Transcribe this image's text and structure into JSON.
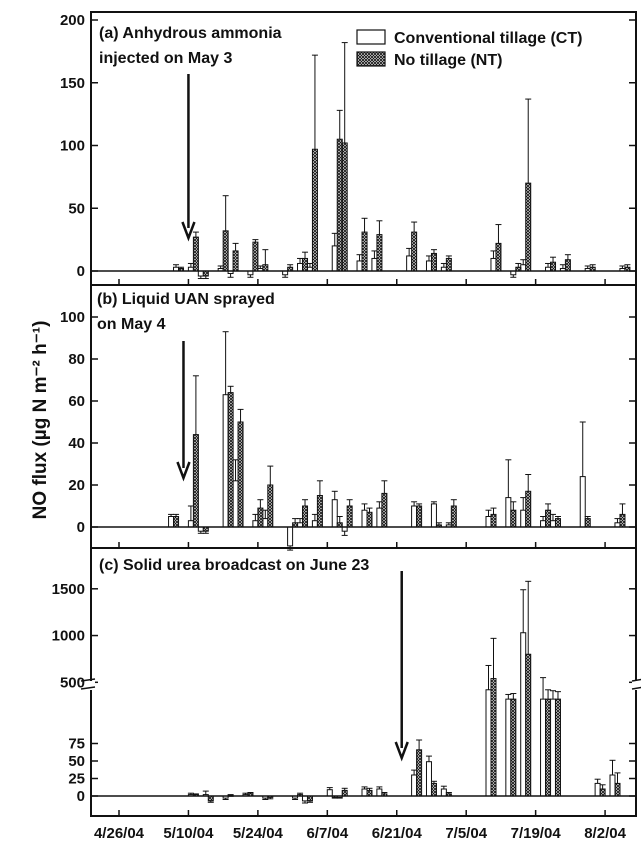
{
  "chart_data": {
    "type": "bar",
    "ylabel": "NO flux (µg N m⁻² h⁻¹)",
    "x_tick_labels": [
      "4/26/04",
      "5/10/04",
      "5/24/04",
      "6/7/04",
      "6/21/04",
      "7/5/04",
      "7/19/04",
      "8/2/04"
    ],
    "x_range_days_from_4_26": [
      0,
      105
    ],
    "legend": {
      "placement": "top-right of panel (a)",
      "entries": [
        "Conventional tillage (CT)",
        "No tillage (NT)"
      ]
    },
    "panels": [
      {
        "id": "a",
        "label_lines": [
          "(a) Anhydrous ammonia",
          "injected on May 3"
        ],
        "ylim": [
          -8,
          200
        ],
        "y_ticks": [
          0,
          50,
          100,
          150,
          200
        ],
        "arrow_date": "5/10/04",
        "series": [
          {
            "name": "Conventional tillage (CT)",
            "points": [
              {
                "x": "5/8/04",
                "y": 3,
                "err": 2
              },
              {
                "x": "5/11/04",
                "y": 3,
                "err": 3
              },
              {
                "x": "5/13/04",
                "y": -4,
                "err": 2
              },
              {
                "x": "5/17/04",
                "y": 2,
                "err": 2
              },
              {
                "x": "5/19/04",
                "y": -2,
                "err": 3
              },
              {
                "x": "5/23/04",
                "y": -3,
                "err": 2
              },
              {
                "x": "5/25/04",
                "y": 2,
                "err": 2
              },
              {
                "x": "5/30/04",
                "y": -3,
                "err": 2
              },
              {
                "x": "6/2/04",
                "y": 6,
                "err": 4
              },
              {
                "x": "6/4/04",
                "y": 3,
                "err": 3
              },
              {
                "x": "6/9/04",
                "y": 20,
                "err": 10
              },
              {
                "x": "6/10/04",
                "y": 10,
                "err": 6
              },
              {
                "x": "6/14/04",
                "y": 8,
                "err": 5
              },
              {
                "x": "6/17/04",
                "y": 10,
                "err": 6
              },
              {
                "x": "6/24/04",
                "y": 12,
                "err": 6
              },
              {
                "x": "6/28/04",
                "y": 8,
                "err": 4
              },
              {
                "x": "7/1/04",
                "y": 3,
                "err": 3
              },
              {
                "x": "7/11/04",
                "y": 10,
                "err": 6
              },
              {
                "x": "7/15/04",
                "y": -3,
                "err": 2
              },
              {
                "x": "7/17/04",
                "y": 5,
                "err": 4
              },
              {
                "x": "7/22/04",
                "y": 3,
                "err": 3
              },
              {
                "x": "7/25/04",
                "y": 2,
                "err": 3
              },
              {
                "x": "7/30/04",
                "y": 2,
                "err": 2
              },
              {
                "x": "8/6/04",
                "y": 2,
                "err": 2
              }
            ]
          },
          {
            "name": "No tillage (NT)",
            "points": [
              {
                "x": "5/8/04",
                "y": 2,
                "err": 1
              },
              {
                "x": "5/11/04",
                "y": 27,
                "err": 4
              },
              {
                "x": "5/13/04",
                "y": -4,
                "err": 2
              },
              {
                "x": "5/17/04",
                "y": 32,
                "err": 28
              },
              {
                "x": "5/19/04",
                "y": 16,
                "err": 6
              },
              {
                "x": "5/23/04",
                "y": 23,
                "err": 2
              },
              {
                "x": "5/25/04",
                "y": 5,
                "err": 12
              },
              {
                "x": "5/30/04",
                "y": 3,
                "err": 2
              },
              {
                "x": "6/2/04",
                "y": 10,
                "err": 5
              },
              {
                "x": "6/4/04",
                "y": 97,
                "err": 75
              },
              {
                "x": "6/9/04",
                "y": 105,
                "err": 23
              },
              {
                "x": "6/10/04",
                "y": 102,
                "err": 80
              },
              {
                "x": "6/14/04",
                "y": 31,
                "err": 11
              },
              {
                "x": "6/17/04",
                "y": 29,
                "err": 11
              },
              {
                "x": "6/24/04",
                "y": 31,
                "err": 8
              },
              {
                "x": "6/28/04",
                "y": 14,
                "err": 3
              },
              {
                "x": "7/1/04",
                "y": 10,
                "err": 2
              },
              {
                "x": "7/11/04",
                "y": 22,
                "err": 15
              },
              {
                "x": "7/15/04",
                "y": 3,
                "err": 3
              },
              {
                "x": "7/17/04",
                "y": 70,
                "err": 67
              },
              {
                "x": "7/22/04",
                "y": 7,
                "err": 4
              },
              {
                "x": "7/25/04",
                "y": 9,
                "err": 4
              },
              {
                "x": "7/30/04",
                "y": 3,
                "err": 2
              },
              {
                "x": "8/6/04",
                "y": 3,
                "err": 2
              }
            ]
          }
        ]
      },
      {
        "id": "b",
        "label_lines": [
          "(b) Liquid UAN sprayed",
          "on May 4"
        ],
        "ylim": [
          -10,
          100
        ],
        "y_ticks": [
          0,
          20,
          40,
          60,
          80,
          100
        ],
        "arrow_date": "5/9/04",
        "series": [
          {
            "name": "Conventional tillage (CT)",
            "points": [
              {
                "x": "5/7/04",
                "y": 5,
                "err": 1
              },
              {
                "x": "5/11/04",
                "y": 3,
                "err": 7
              },
              {
                "x": "5/13/04",
                "y": -2,
                "err": 1
              },
              {
                "x": "5/18/04",
                "y": 63,
                "err": 30
              },
              {
                "x": "5/20/04",
                "y": 22,
                "err": 10
              },
              {
                "x": "5/24/04",
                "y": 3,
                "err": 3
              },
              {
                "x": "5/26/04",
                "y": 4,
                "err": 4
              },
              {
                "x": "5/31/04",
                "y": -9,
                "err": 2
              },
              {
                "x": "6/2/04",
                "y": 2,
                "err": 2
              },
              {
                "x": "6/5/04",
                "y": 3,
                "err": 3
              },
              {
                "x": "6/9/04",
                "y": 13,
                "err": 4
              },
              {
                "x": "6/11/04",
                "y": -2,
                "err": 2
              },
              {
                "x": "6/15/04",
                "y": 8,
                "err": 3
              },
              {
                "x": "6/18/04",
                "y": 9,
                "err": 3
              },
              {
                "x": "6/25/04",
                "y": 10,
                "err": 2
              },
              {
                "x": "6/29/04",
                "y": 11,
                "err": 1
              },
              {
                "x": "7/2/04",
                "y": 1,
                "err": 1
              },
              {
                "x": "7/10/04",
                "y": 5,
                "err": 3
              },
              {
                "x": "7/14/04",
                "y": 14,
                "err": 18
              },
              {
                "x": "7/17/04",
                "y": 8,
                "err": 6
              },
              {
                "x": "7/21/04",
                "y": 3,
                "err": 2
              },
              {
                "x": "7/23/04",
                "y": 3,
                "err": 3
              },
              {
                "x": "7/29/04",
                "y": 24,
                "err": 26
              },
              {
                "x": "8/5/04",
                "y": 2,
                "err": 2
              }
            ]
          },
          {
            "name": "No tillage (NT)",
            "points": [
              {
                "x": "5/7/04",
                "y": 5,
                "err": 1
              },
              {
                "x": "5/11/04",
                "y": 44,
                "err": 28
              },
              {
                "x": "5/13/04",
                "y": -2,
                "err": 1
              },
              {
                "x": "5/18/04",
                "y": 64,
                "err": 3
              },
              {
                "x": "5/20/04",
                "y": 50,
                "err": 6
              },
              {
                "x": "5/24/04",
                "y": 9,
                "err": 4
              },
              {
                "x": "5/26/04",
                "y": 20,
                "err": 9
              },
              {
                "x": "5/31/04",
                "y": 2,
                "err": 2
              },
              {
                "x": "6/2/04",
                "y": 10,
                "err": 3
              },
              {
                "x": "6/5/04",
                "y": 15,
                "err": 7
              },
              {
                "x": "6/9/04",
                "y": 2,
                "err": 3
              },
              {
                "x": "6/11/04",
                "y": 10,
                "err": 3
              },
              {
                "x": "6/15/04",
                "y": 7,
                "err": 2
              },
              {
                "x": "6/18/04",
                "y": 16,
                "err": 6
              },
              {
                "x": "6/25/04",
                "y": 10,
                "err": 1
              },
              {
                "x": "6/29/04",
                "y": 1,
                "err": 1
              },
              {
                "x": "7/2/04",
                "y": 10,
                "err": 3
              },
              {
                "x": "7/10/04",
                "y": 6,
                "err": 3
              },
              {
                "x": "7/14/04",
                "y": 8,
                "err": 4
              },
              {
                "x": "7/17/04",
                "y": 17,
                "err": 8
              },
              {
                "x": "7/21/04",
                "y": 8,
                "err": 3
              },
              {
                "x": "7/23/04",
                "y": 4,
                "err": 1
              },
              {
                "x": "7/29/04",
                "y": 4,
                "err": 1
              },
              {
                "x": "8/5/04",
                "y": 6,
                "err": 5
              }
            ]
          }
        ]
      },
      {
        "id": "c",
        "label_lines": [
          "(c) Solid urea broadcast on June 23"
        ],
        "axis_break": true,
        "upper_y_ticks": [
          500,
          1000,
          1500
        ],
        "lower_y_ticks": [
          0,
          25,
          50,
          75
        ],
        "arrow_date": "6/22/04",
        "series": [
          {
            "name": "Conventional tillage (CT)",
            "points": [
              {
                "x": "5/11/04",
                "y": 2,
                "err": 2
              },
              {
                "x": "5/14/04",
                "y": 2,
                "err": 5
              },
              {
                "x": "5/18/04",
                "y": -3,
                "err": 2
              },
              {
                "x": "5/22/04",
                "y": 2,
                "err": 2
              },
              {
                "x": "5/26/04",
                "y": -3,
                "err": 2
              },
              {
                "x": "6/1/04",
                "y": -3,
                "err": 2
              },
              {
                "x": "6/3/04",
                "y": -7,
                "err": 3
              },
              {
                "x": "6/8/04",
                "y": 9,
                "err": 3
              },
              {
                "x": "6/10/04",
                "y": -2,
                "err": 1
              },
              {
                "x": "6/15/04",
                "y": 10,
                "err": 3
              },
              {
                "x": "6/18/04",
                "y": 10,
                "err": 3
              },
              {
                "x": "6/25/04",
                "y": 30,
                "err": 7
              },
              {
                "x": "6/28/04",
                "y": 49,
                "err": 8
              },
              {
                "x": "7/1/04",
                "y": 10,
                "err": 4
              },
              {
                "x": "7/10/04",
                "y": 420,
                "err": 260
              },
              {
                "x": "7/14/04",
                "y": 320,
                "err": 50
              },
              {
                "x": "7/17/04",
                "y": 1030,
                "err": 460
              },
              {
                "x": "7/21/04",
                "y": 320,
                "err": 230
              },
              {
                "x": "7/23/04",
                "y": 320,
                "err": 90
              },
              {
                "x": "8/1/04",
                "y": 18,
                "err": 6
              },
              {
                "x": "8/4/04",
                "y": 30,
                "err": 21
              }
            ]
          },
          {
            "name": "No tillage (NT)",
            "points": [
              {
                "x": "5/11/04",
                "y": 2,
                "err": 1
              },
              {
                "x": "5/14/04",
                "y": -7,
                "err": 2
              },
              {
                "x": "5/18/04",
                "y": 1,
                "err": 1
              },
              {
                "x": "5/22/04",
                "y": 4,
                "err": 1
              },
              {
                "x": "5/26/04",
                "y": -2,
                "err": 2
              },
              {
                "x": "6/1/04",
                "y": 2,
                "err": 2
              },
              {
                "x": "6/3/04",
                "y": -7,
                "err": 2
              },
              {
                "x": "6/8/04",
                "y": -2,
                "err": 1
              },
              {
                "x": "6/10/04",
                "y": 8,
                "err": 3
              },
              {
                "x": "6/15/04",
                "y": 8,
                "err": 3
              },
              {
                "x": "6/18/04",
                "y": 3,
                "err": 2
              },
              {
                "x": "6/25/04",
                "y": 66,
                "err": 14
              },
              {
                "x": "6/28/04",
                "y": 18,
                "err": 3
              },
              {
                "x": "7/1/04",
                "y": 3,
                "err": 2
              },
              {
                "x": "7/10/04",
                "y": 540,
                "err": 430
              },
              {
                "x": "7/14/04",
                "y": 320,
                "err": 60
              },
              {
                "x": "7/17/04",
                "y": 800,
                "err": 780
              },
              {
                "x": "7/21/04",
                "y": 320,
                "err": 100
              },
              {
                "x": "7/23/04",
                "y": 320,
                "err": 80
              },
              {
                "x": "8/1/04",
                "y": 10,
                "err": 6
              },
              {
                "x": "8/4/04",
                "y": 18,
                "err": 15
              }
            ]
          }
        ]
      }
    ]
  }
}
